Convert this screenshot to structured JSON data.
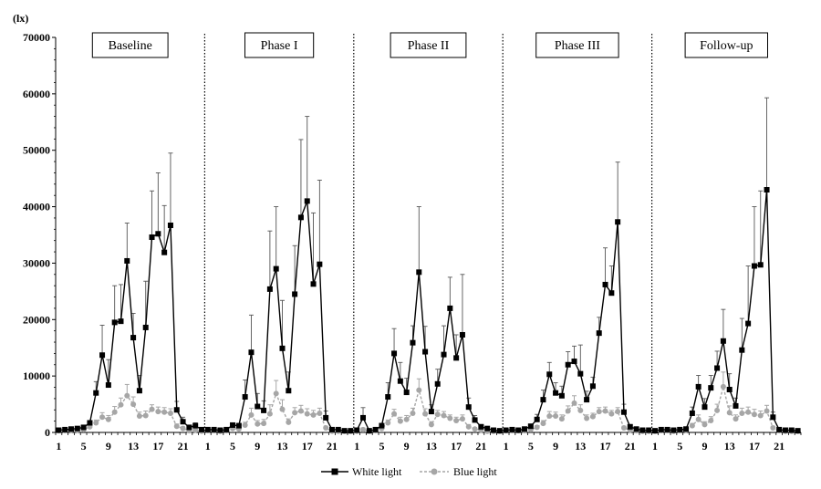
{
  "chart_data": {
    "type": "line",
    "y_unit_label": "(lx)",
    "ylim": [
      0,
      70000
    ],
    "yticks": [
      0,
      10000,
      20000,
      30000,
      40000,
      50000,
      60000,
      70000
    ],
    "hour_tick_labels": [
      "1",
      "5",
      "9",
      "13",
      "17",
      "21"
    ],
    "hour_tick_values": [
      1,
      5,
      9,
      13,
      17,
      21
    ],
    "hours_per_panel": 24,
    "grid": false,
    "legend_position": "bottom-center",
    "colors": {
      "white": "#000000",
      "blue": "#a6a6a6"
    },
    "panels": [
      {
        "name": "Baseline",
        "white": [
          400,
          500,
          600,
          700,
          900,
          1700,
          7000,
          13700,
          8400,
          19500,
          19700,
          30400,
          16800,
          7400,
          18600,
          34600,
          35200,
          31900,
          36700,
          4000,
          1900,
          900,
          1200,
          500
        ],
        "white_err": [
          100,
          100,
          150,
          150,
          200,
          400,
          2000,
          5300,
          4500,
          6500,
          6500,
          6700,
          4300,
          2700,
          8200,
          8200,
          10800,
          8300,
          12800,
          1500,
          800,
          300,
          500,
          200
        ],
        "blue": [
          300,
          300,
          400,
          400,
          500,
          1000,
          1700,
          2700,
          2300,
          3600,
          4900,
          6500,
          5000,
          2900,
          3000,
          4100,
          3700,
          3600,
          3400,
          1100,
          700,
          300,
          400,
          200
        ],
        "blue_err": [
          100,
          100,
          100,
          100,
          150,
          300,
          500,
          800,
          700,
          1000,
          1200,
          2000,
          1300,
          700,
          800,
          800,
          800,
          800,
          800,
          400,
          300,
          100,
          150,
          100
        ]
      },
      {
        "name": "Phase I",
        "white": [
          500,
          500,
          400,
          500,
          1300,
          1200,
          6300,
          14200,
          4600,
          3900,
          25400,
          29000,
          14900,
          7400,
          24500,
          38100,
          41000,
          26300,
          29800,
          2600,
          500,
          500,
          300,
          300
        ],
        "white_err": [
          150,
          150,
          100,
          150,
          400,
          400,
          3000,
          6600,
          2300,
          1700,
          10300,
          11000,
          8500,
          3300,
          8600,
          13800,
          15000,
          12600,
          14900,
          1200,
          200,
          200,
          100,
          100
        ],
        "blue": [
          300,
          300,
          200,
          300,
          700,
          600,
          1300,
          3100,
          1500,
          1600,
          3300,
          6900,
          4100,
          1800,
          3500,
          3800,
          3300,
          3100,
          3400,
          800,
          200,
          200,
          200,
          200
        ],
        "blue_err": [
          100,
          100,
          100,
          100,
          200,
          200,
          500,
          1200,
          600,
          700,
          1600,
          2300,
          1700,
          600,
          900,
          1000,
          900,
          800,
          900,
          300,
          100,
          100,
          100,
          100
        ]
      },
      {
        "name": "Phase II",
        "white": [
          400,
          2600,
          300,
          500,
          1200,
          6300,
          14000,
          9100,
          7100,
          15900,
          28400,
          14300,
          3700,
          8600,
          13800,
          22000,
          13200,
          17300,
          4500,
          2200,
          1000,
          700,
          400,
          300
        ],
        "white_err": [
          150,
          1800,
          100,
          150,
          400,
          2500,
          4400,
          3300,
          2500,
          3000,
          11600,
          4500,
          1200,
          2600,
          5100,
          5500,
          4100,
          10700,
          1600,
          800,
          400,
          200,
          100,
          100
        ],
        "blue": [
          200,
          500,
          200,
          300,
          700,
          1700,
          3300,
          2000,
          2300,
          3400,
          7500,
          3300,
          1400,
          3200,
          3000,
          2500,
          2100,
          2400,
          1000,
          600,
          400,
          200,
          200,
          200
        ],
        "blue_err": [
          100,
          300,
          100,
          100,
          200,
          500,
          800,
          700,
          700,
          900,
          2000,
          900,
          500,
          700,
          700,
          600,
          600,
          700,
          400,
          200,
          100,
          100,
          100,
          100
        ]
      },
      {
        "name": "Phase III",
        "white": [
          400,
          500,
          400,
          600,
          1100,
          2300,
          5800,
          10300,
          7000,
          6500,
          12000,
          12600,
          10400,
          5800,
          8200,
          17600,
          26200,
          24700,
          37300,
          3600,
          1000,
          600,
          400,
          400
        ],
        "white_err": [
          150,
          150,
          100,
          200,
          300,
          900,
          1700,
          2100,
          1800,
          1700,
          2300,
          2700,
          5100,
          1500,
          1600,
          2800,
          6500,
          4800,
          10600,
          1400,
          400,
          200,
          100,
          100
        ],
        "blue": [
          300,
          300,
          300,
          300,
          500,
          900,
          1600,
          2900,
          2900,
          2400,
          3800,
          5200,
          3900,
          2500,
          2800,
          3700,
          3800,
          3300,
          3700,
          800,
          400,
          300,
          200,
          200
        ],
        "blue_err": [
          100,
          100,
          100,
          100,
          200,
          300,
          500,
          800,
          700,
          700,
          900,
          1300,
          1000,
          600,
          600,
          700,
          700,
          600,
          700,
          300,
          100,
          100,
          100,
          100
        ]
      },
      {
        "name": "Follow-up",
        "white": [
          300,
          500,
          500,
          400,
          500,
          600,
          3400,
          8100,
          4500,
          7900,
          11400,
          16200,
          7600,
          4700,
          14600,
          19300,
          29500,
          29700,
          43000,
          2700,
          500,
          400,
          400,
          300
        ],
        "white_err": [
          100,
          150,
          150,
          100,
          150,
          200,
          1100,
          2000,
          1500,
          2200,
          3000,
          5600,
          2800,
          1400,
          5600,
          10200,
          10500,
          13100,
          16300,
          900,
          200,
          100,
          100,
          100
        ],
        "blue": [
          200,
          300,
          300,
          200,
          300,
          400,
          1200,
          2300,
          1400,
          2100,
          3900,
          8100,
          3500,
          2400,
          3400,
          3600,
          3200,
          3000,
          3800,
          800,
          300,
          200,
          200,
          200
        ],
        "blue_err": [
          100,
          100,
          100,
          100,
          100,
          100,
          400,
          800,
          500,
          700,
          1100,
          2600,
          1200,
          700,
          900,
          900,
          900,
          800,
          1000,
          300,
          100,
          100,
          100,
          100
        ]
      }
    ],
    "series": [
      {
        "name": "White light"
      },
      {
        "name": "Blue light"
      }
    ]
  }
}
